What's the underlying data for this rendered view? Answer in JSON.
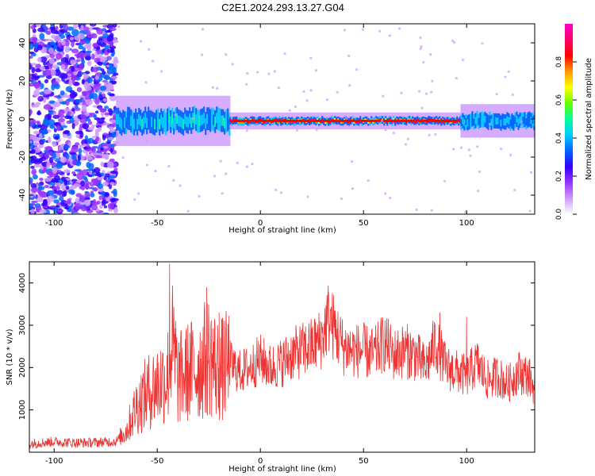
{
  "title": "C2E1.2024.293.13.27.G04",
  "chart_data": [
    {
      "type": "heatmap",
      "xlabel": "Height of straight line (km)",
      "ylabel": "Frequency (Hz)",
      "xlim": [
        -112,
        133
      ],
      "ylim": [
        -50,
        50
      ],
      "x_ticks": [
        "-100",
        "-50",
        "0",
        "50",
        "100"
      ],
      "y_ticks": [
        "-40",
        "-20",
        "0",
        "20",
        "40"
      ],
      "colorbar": {
        "label": "Normalized spectral amplitude",
        "range": [
          0,
          1
        ],
        "ticks": [
          "0.0",
          "0.2",
          "0.4",
          "0.6",
          "0.8"
        ],
        "colors": [
          "#ffffff",
          "#cc99ff",
          "#9933ff",
          "#3300ff",
          "#0066ff",
          "#00ccff",
          "#00ff99",
          "#66ff00",
          "#ffff00",
          "#ff9900",
          "#ff0000",
          "#ff0066",
          "#ff00cc"
        ]
      },
      "regions": [
        {
          "x_range": [
            -112,
            -70
          ],
          "freq_spread": 50,
          "peak_amplitude": 0.3,
          "description_type": "noise"
        },
        {
          "x_range": [
            -70,
            -15
          ],
          "freq_spread": 6,
          "peak_amplitude": 0.5
        },
        {
          "x_range": [
            -15,
            97
          ],
          "freq_spread": 2,
          "peak_amplitude": 0.95
        },
        {
          "x_range": [
            97,
            133
          ],
          "freq_spread": 4,
          "peak_amplitude": 0.45
        }
      ]
    },
    {
      "type": "line",
      "xlabel": "Height of straight line (km)",
      "ylabel": "SNR (10 * v/v)",
      "xlim": [
        -112,
        133
      ],
      "ylim": [
        0,
        4500
      ],
      "x_ticks": [
        "-100",
        "-50",
        "0",
        "50",
        "100"
      ],
      "y_ticks": [
        "1000",
        "2000",
        "3000",
        "4000"
      ],
      "series": [
        {
          "color": "#ee3333",
          "x": [
            -112,
            -100,
            -90,
            -80,
            -70,
            -65,
            -60,
            -55,
            -50,
            -45,
            -43,
            -40,
            -35,
            -30,
            -25,
            -20,
            -15,
            -10,
            -5,
            0,
            5,
            10,
            15,
            20,
            25,
            30,
            33,
            35,
            40,
            45,
            50,
            55,
            60,
            65,
            70,
            75,
            80,
            85,
            90,
            95,
            100,
            105,
            110,
            115,
            120,
            125,
            130,
            133
          ],
          "y": [
            200,
            250,
            220,
            230,
            250,
            500,
            1100,
            1400,
            1600,
            1800,
            2600,
            1700,
            1900,
            2000,
            2300,
            1900,
            2100,
            1900,
            2000,
            2200,
            2000,
            2100,
            2300,
            2400,
            2500,
            2700,
            3200,
            3000,
            2500,
            2400,
            2400,
            2300,
            2600,
            2300,
            2400,
            2300,
            2000,
            2600,
            2000,
            1900,
            1800,
            2100,
            1700,
            1800,
            1600,
            1900,
            1800,
            1500
          ],
          "peaks": [
            [
              -44,
              4450
            ],
            [
              -26,
              3900
            ],
            [
              -41,
              3100
            ],
            [
              -20,
              3300
            ],
            [
              33,
              3550
            ],
            [
              87,
              3300
            ],
            [
              100,
              3200
            ]
          ]
        }
      ]
    }
  ]
}
